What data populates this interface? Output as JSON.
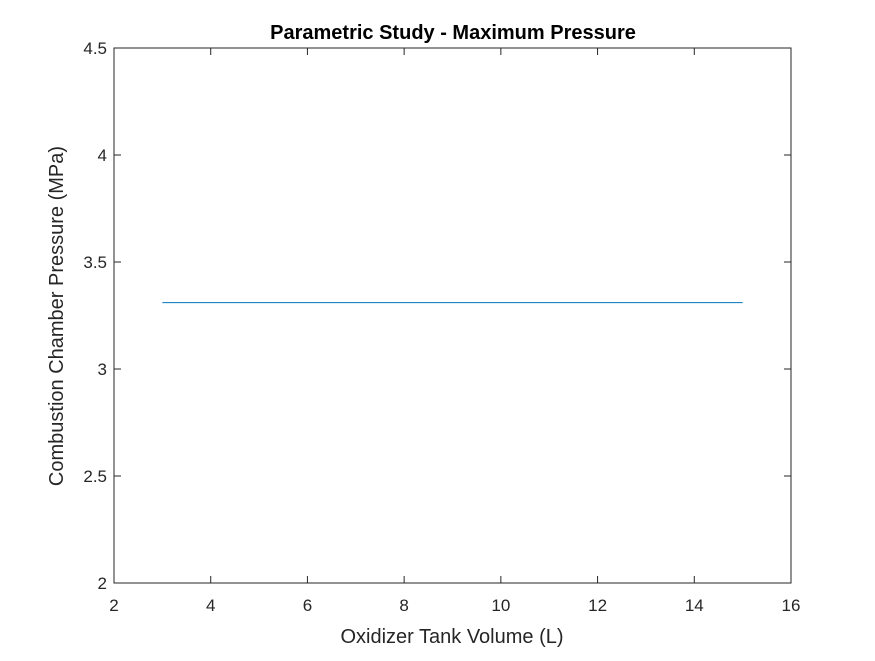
{
  "colors": {
    "series": "#0072BD",
    "axes": "#262626",
    "background": "#ffffff"
  },
  "chart_data": {
    "type": "line",
    "title": "Parametric Study - Maximum Pressure",
    "xlabel": "Oxidizer Tank Volume (L)",
    "ylabel": "Combustion Chamber Pressure (MPa)",
    "xlim": [
      2,
      16
    ],
    "ylim": [
      2,
      4.5
    ],
    "xticks": [
      2,
      4,
      6,
      8,
      10,
      12,
      14,
      16
    ],
    "yticks": [
      2,
      2.5,
      3,
      3.5,
      4,
      4.5
    ],
    "xtick_labels": [
      "2",
      "4",
      "6",
      "8",
      "10",
      "12",
      "14",
      "16"
    ],
    "ytick_labels": [
      "2",
      "2.5",
      "3",
      "3.5",
      "4",
      "4.5"
    ],
    "grid": false,
    "series": [
      {
        "x": [
          3,
          15
        ],
        "y": [
          3.31,
          3.31
        ]
      }
    ]
  }
}
